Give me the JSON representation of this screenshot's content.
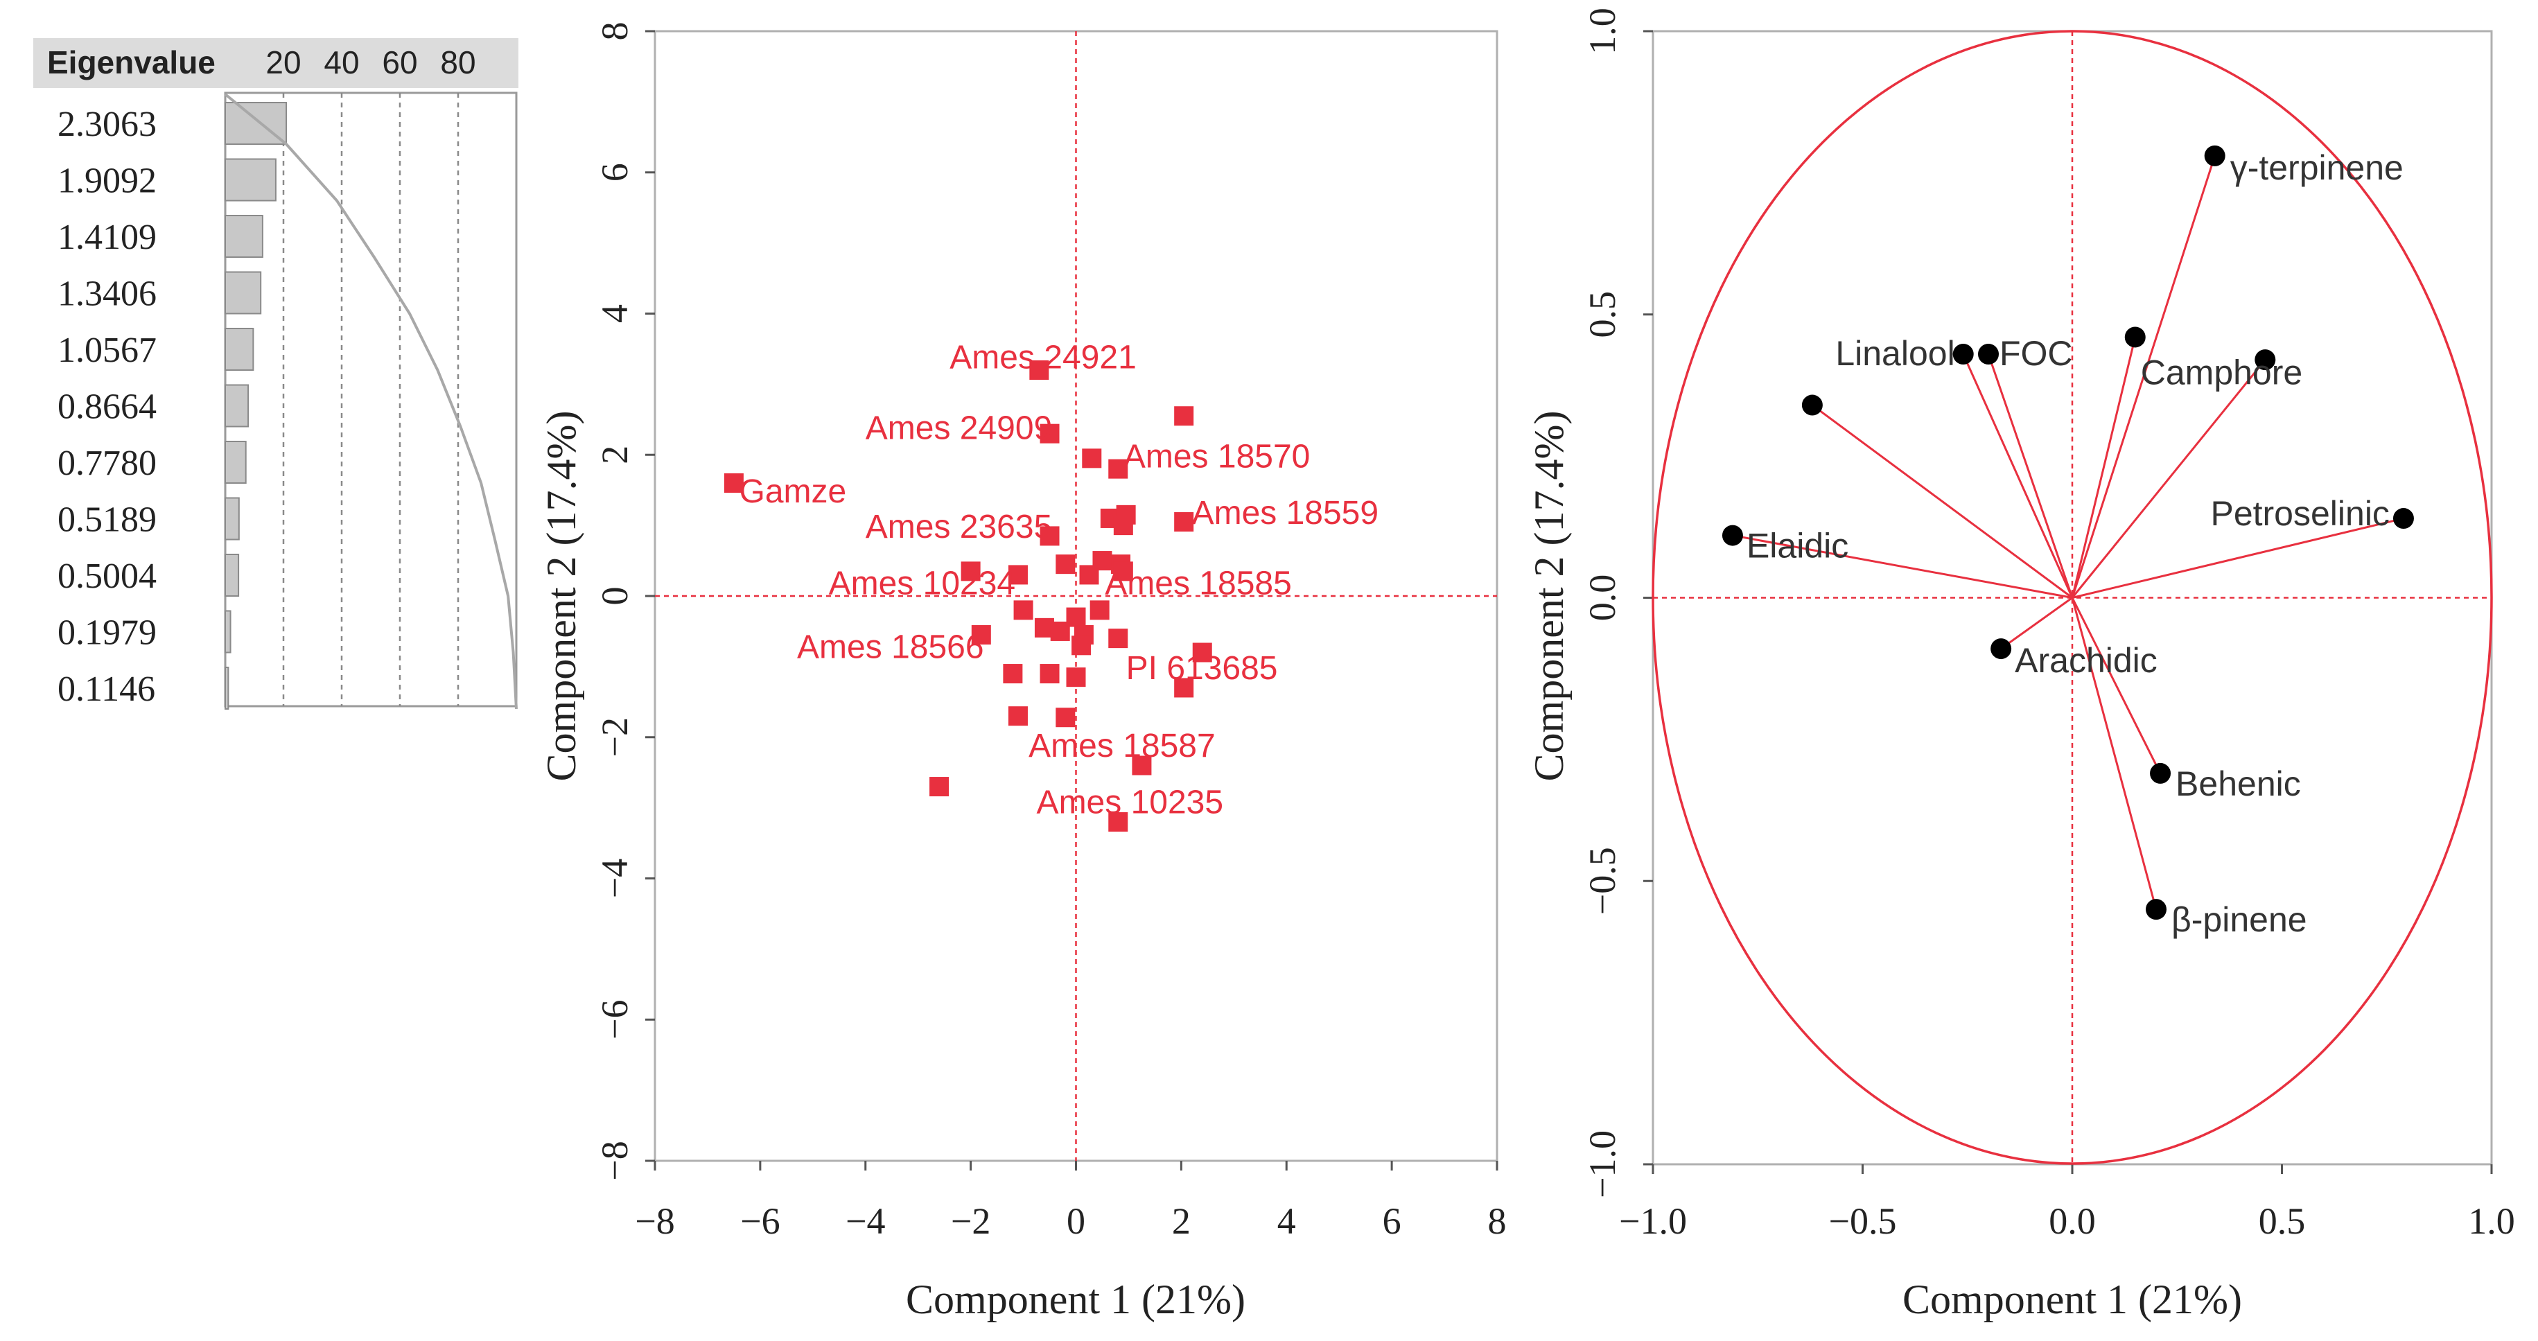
{
  "chart_data": [
    {
      "type": "bar",
      "title": "",
      "header": "Eigenvalue",
      "axis_ticks": [
        "20",
        "40",
        "60",
        "80"
      ],
      "values": [
        2.3063,
        1.9092,
        1.4109,
        1.3406,
        1.0567,
        0.8664,
        0.778,
        0.5189,
        0.5004,
        0.1979,
        0.1146
      ],
      "labels": [
        "2.3063",
        "1.9092",
        "1.4109",
        "1.3406",
        "1.0567",
        "0.8664",
        "0.7780",
        "0.5189",
        "0.5004",
        "0.1979",
        "0.1146"
      ],
      "percent_range": [
        0,
        100
      ],
      "cumulative_curve": true,
      "bar_color": "#c8c8c8"
    },
    {
      "type": "scatter",
      "title": "",
      "xlabel": "Component 1 (21%)",
      "ylabel": "Component 2 (17.4%)",
      "xlim": [
        -8,
        8
      ],
      "ylim": [
        -8,
        8
      ],
      "xticks": [
        -8,
        -6,
        -4,
        -2,
        0,
        2,
        4,
        6,
        8
      ],
      "yticks": [
        -8,
        -6,
        -4,
        -2,
        0,
        2,
        4,
        6,
        8
      ],
      "xtick_labels": [
        "−8",
        "−6",
        "−4",
        "−2",
        "0",
        "2",
        "4",
        "6",
        "8"
      ],
      "ytick_labels": [
        "−8",
        "−6",
        "−4",
        "−2",
        "0",
        "2",
        "4",
        "6",
        "8"
      ],
      "color": "#e8303f",
      "points": [
        {
          "x": -6.5,
          "y": 1.6
        },
        {
          "x": -0.7,
          "y": 3.2
        },
        {
          "x": -0.5,
          "y": 2.3
        },
        {
          "x": 2.05,
          "y": 2.55
        },
        {
          "x": 0.3,
          "y": 1.95
        },
        {
          "x": 0.8,
          "y": 1.8
        },
        {
          "x": 0.65,
          "y": 1.1
        },
        {
          "x": 0.95,
          "y": 1.15
        },
        {
          "x": 0.9,
          "y": 1.0
        },
        {
          "x": 2.05,
          "y": 1.05
        },
        {
          "x": -0.5,
          "y": 0.85
        },
        {
          "x": -2.0,
          "y": 0.35
        },
        {
          "x": -1.1,
          "y": 0.3
        },
        {
          "x": -0.2,
          "y": 0.45
        },
        {
          "x": 0.25,
          "y": 0.3
        },
        {
          "x": 0.5,
          "y": 0.5
        },
        {
          "x": 0.85,
          "y": 0.45
        },
        {
          "x": 0.9,
          "y": 0.35
        },
        {
          "x": -1.0,
          "y": -0.2
        },
        {
          "x": -0.6,
          "y": -0.45
        },
        {
          "x": -0.3,
          "y": -0.5
        },
        {
          "x": 0.0,
          "y": -0.3
        },
        {
          "x": 0.15,
          "y": -0.55
        },
        {
          "x": 0.45,
          "y": -0.2
        },
        {
          "x": 0.1,
          "y": -0.7
        },
        {
          "x": -1.8,
          "y": -0.55
        },
        {
          "x": 0.8,
          "y": -0.6
        },
        {
          "x": 2.4,
          "y": -0.8
        },
        {
          "x": 2.05,
          "y": -1.3
        },
        {
          "x": -1.2,
          "y": -1.1
        },
        {
          "x": -0.5,
          "y": -1.1
        },
        {
          "x": 0.0,
          "y": -1.15
        },
        {
          "x": -1.1,
          "y": -1.7
        },
        {
          "x": -0.2,
          "y": -1.72
        },
        {
          "x": 1.25,
          "y": -2.4
        },
        {
          "x": -2.6,
          "y": -2.7
        },
        {
          "x": 0.8,
          "y": -3.2
        }
      ],
      "labels": [
        {
          "text": "Gamze",
          "x": -6.4,
          "y": 1.5
        },
        {
          "text": "Ames 24921",
          "x": -2.4,
          "y": 3.4
        },
        {
          "text": "Ames 24909",
          "x": -4.0,
          "y": 2.4
        },
        {
          "text": "Ames 18570",
          "x": 0.9,
          "y": 2.0
        },
        {
          "text": "Ames 18559",
          "x": 2.2,
          "y": 1.2
        },
        {
          "text": "Ames 23635",
          "x": -4.0,
          "y": 1.0
        },
        {
          "text": "Ames 10234",
          "x": -4.7,
          "y": 0.2
        },
        {
          "text": "Ames 18585",
          "x": 0.55,
          "y": 0.2
        },
        {
          "text": "Ames 18566",
          "x": -5.3,
          "y": -0.7
        },
        {
          "text": "PI 613685",
          "x": 0.95,
          "y": -1.0
        },
        {
          "text": "Ames 18587",
          "x": -0.9,
          "y": -2.1
        },
        {
          "text": "Ames 10235",
          "x": -0.75,
          "y": -2.9
        }
      ]
    },
    {
      "type": "scatter",
      "title": "",
      "xlabel": "Component 1 (21%)",
      "ylabel": "Component 2 (17.4%)",
      "xlim": [
        -1.0,
        1.0
      ],
      "ylim": [
        -1.0,
        1.0
      ],
      "xticks": [
        -1.0,
        -0.5,
        0.0,
        0.5,
        1.0
      ],
      "yticks": [
        -1.0,
        -0.5,
        0.0,
        0.5,
        1.0
      ],
      "xtick_labels": [
        "−1.0",
        "−0.5",
        "0.0",
        "0.5",
        "1.0"
      ],
      "ytick_labels": [
        "−1.0",
        "−0.5",
        "0.0",
        "0.5",
        "1.0"
      ],
      "unit_circle": true,
      "color": "#e8303f",
      "loadings": [
        {
          "name": "γ-terpinene",
          "x": 0.34,
          "y": 0.78
        },
        {
          "name": "Linalool",
          "x": -0.26,
          "y": 0.43
        },
        {
          "name": "FOC",
          "x": -0.2,
          "y": 0.43
        },
        {
          "name": "Camphore",
          "x": 0.15,
          "y": 0.46
        },
        {
          "name": "",
          "x": 0.46,
          "y": 0.42
        },
        {
          "name": "",
          "x": -0.62,
          "y": 0.34
        },
        {
          "name": "Petroselinic",
          "x": 0.79,
          "y": 0.14
        },
        {
          "name": "Elaidic",
          "x": -0.81,
          "y": 0.11
        },
        {
          "name": "Arachidic",
          "x": -0.17,
          "y": -0.09
        },
        {
          "name": "Behenic",
          "x": 0.21,
          "y": -0.31
        },
        {
          "name": "β-pinene",
          "x": 0.2,
          "y": -0.55
        }
      ]
    }
  ]
}
